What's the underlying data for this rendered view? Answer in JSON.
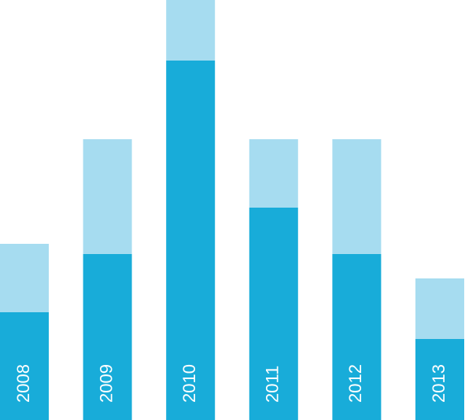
{
  "chart_data": {
    "type": "stacked-bar",
    "categories": [
      "2008",
      "2009",
      "2010",
      "2011",
      "2012",
      "2013"
    ],
    "series": [
      {
        "color": "#18acd9",
        "values": [
          137,
          211,
          457,
          270,
          211,
          103
        ]
      },
      {
        "color": "#a6dcf0",
        "values": [
          87,
          146,
          77,
          87,
          146,
          77
        ]
      }
    ],
    "ylim": [
      0,
      534
    ]
  }
}
